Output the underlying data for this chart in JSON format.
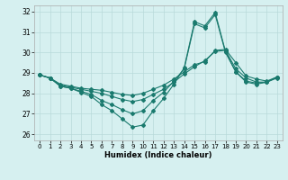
{
  "xlabel": "Humidex (Indice chaleur)",
  "bg_color": "#d6f0f0",
  "line_color": "#1a7a6e",
  "grid_color": "#b8dada",
  "xlim": [
    -0.5,
    23.5
  ],
  "ylim": [
    25.7,
    32.3
  ],
  "yticks": [
    26,
    27,
    28,
    29,
    30,
    31,
    32
  ],
  "xticks": [
    0,
    1,
    2,
    3,
    4,
    5,
    6,
    7,
    8,
    9,
    10,
    11,
    12,
    13,
    14,
    15,
    16,
    17,
    18,
    19,
    20,
    21,
    22,
    23
  ],
  "line1_x": [
    0,
    1,
    2,
    3,
    4,
    5,
    6,
    7,
    8,
    9,
    10,
    11,
    12,
    13,
    14,
    15,
    16,
    17,
    18,
    19,
    20,
    21,
    22,
    23
  ],
  "line1_y": [
    28.9,
    28.75,
    28.35,
    28.25,
    28.05,
    27.85,
    27.45,
    27.15,
    26.75,
    26.35,
    26.45,
    27.15,
    27.75,
    28.45,
    29.25,
    31.5,
    31.3,
    31.95,
    30.05,
    29.05,
    28.55,
    28.45,
    28.55,
    28.75
  ],
  "line2_x": [
    0,
    1,
    2,
    3,
    4,
    5,
    6,
    7,
    8,
    9,
    10,
    11,
    12,
    13,
    14,
    15,
    16,
    17,
    18,
    19,
    20,
    21,
    22,
    23
  ],
  "line2_y": [
    28.9,
    28.75,
    28.45,
    28.35,
    28.25,
    28.2,
    28.15,
    28.05,
    27.95,
    27.9,
    28.0,
    28.2,
    28.4,
    28.7,
    29.05,
    29.4,
    29.55,
    30.1,
    30.15,
    29.5,
    28.85,
    28.7,
    28.6,
    28.8
  ],
  "line3_x": [
    0,
    1,
    2,
    3,
    4,
    5,
    6,
    7,
    8,
    9,
    10,
    11,
    12,
    13,
    14,
    15,
    16,
    17,
    18,
    19,
    20,
    21,
    22,
    23
  ],
  "line3_y": [
    28.9,
    28.75,
    28.4,
    28.3,
    28.2,
    28.1,
    28.0,
    27.85,
    27.7,
    27.6,
    27.7,
    27.95,
    28.2,
    28.55,
    28.95,
    29.3,
    29.6,
    30.05,
    30.1,
    29.2,
    28.75,
    28.55,
    28.55,
    28.8
  ],
  "line4_x": [
    0,
    1,
    2,
    3,
    4,
    5,
    6,
    7,
    8,
    9,
    10,
    11,
    12,
    13,
    14,
    15,
    16,
    17,
    18,
    19,
    20,
    21,
    22,
    23
  ],
  "line4_y": [
    28.9,
    28.75,
    28.35,
    28.25,
    28.1,
    27.95,
    27.65,
    27.45,
    27.2,
    27.0,
    27.15,
    27.65,
    28.05,
    28.6,
    29.2,
    31.4,
    31.2,
    31.85,
    30.0,
    29.05,
    28.6,
    28.5,
    28.55,
    28.8
  ]
}
